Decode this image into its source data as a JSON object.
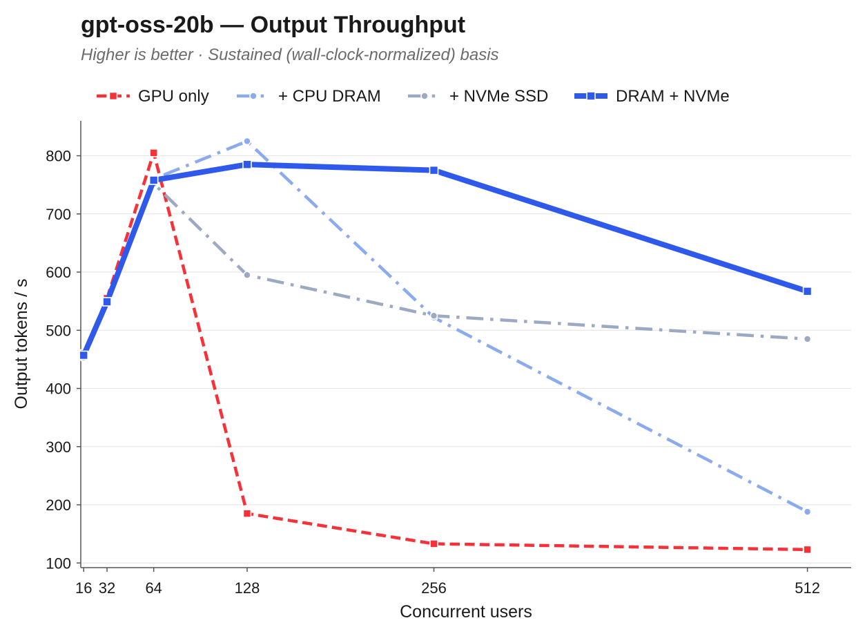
{
  "chart_data": {
    "type": "line",
    "title": "gpt-oss-20b  —  Output Throughput",
    "subtitle": "Higher is better  ·  Sustained (wall-clock-normalized) basis",
    "xlabel": "Concurrent users",
    "ylabel": "Output tokens / s",
    "x": [
      16,
      32,
      64,
      128,
      256,
      512
    ],
    "x_tick_labels": [
      "16",
      "32",
      "64",
      "128",
      "256",
      "512"
    ],
    "xlim": [
      14,
      542
    ],
    "ylim": [
      92,
      860
    ],
    "y_ticks": [
      100,
      200,
      300,
      400,
      500,
      600,
      700,
      800
    ],
    "y_tick_labels": [
      "100",
      "200",
      "300",
      "400",
      "500",
      "600",
      "700",
      "800"
    ],
    "grid": "y",
    "legend_position": "top-left",
    "series": [
      {
        "name": "GPU only",
        "color": "#f73137",
        "style": "dashed",
        "marker": "square",
        "values": [
          460,
          555,
          805,
          185,
          133,
          123
        ]
      },
      {
        "name": "+ CPU DRAM",
        "color": "#8caaee",
        "style": "dashdot",
        "marker": "circle",
        "values": [
          452,
          548,
          760,
          825,
          522,
          188
        ]
      },
      {
        "name": "+ NVMe SSD",
        "color": "#9ca9c2",
        "style": "dashdot",
        "marker": "circle",
        "values": [
          453,
          547,
          752,
          595,
          525,
          485
        ]
      },
      {
        "name": "DRAM + NVMe",
        "color": "#2f59ea",
        "style": "solid",
        "marker": "square",
        "values": [
          457,
          549,
          758,
          785,
          775,
          567
        ]
      }
    ]
  }
}
